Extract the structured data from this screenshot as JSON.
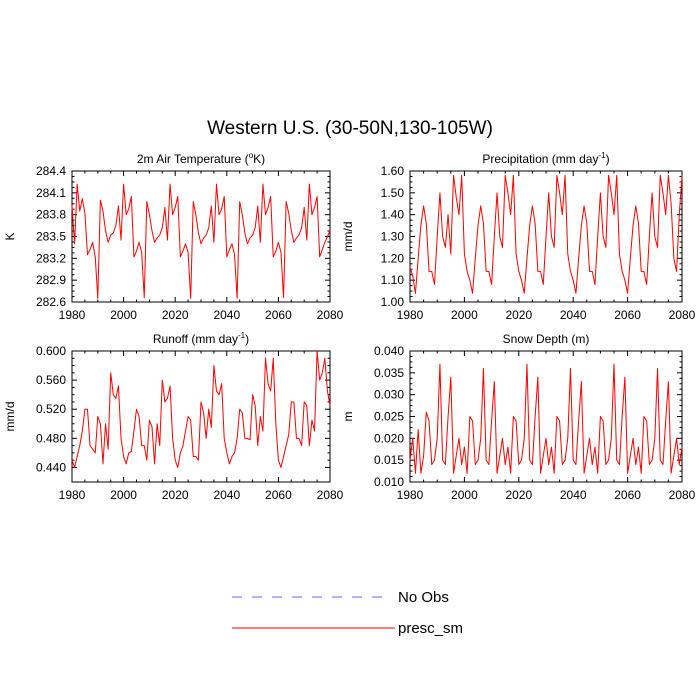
{
  "figure_title": "Western U.S. (30-50N,130-105W)",
  "colors": {
    "model_line": "#ff0000",
    "obs_line": "#6666ff",
    "axes": "#000000"
  },
  "legend": [
    {
      "label": "No Obs",
      "style": "dashed",
      "color": "#6666ff"
    },
    {
      "label": "presc_sm",
      "style": "solid",
      "color": "#ff0000"
    }
  ],
  "chart_data": [
    {
      "type": "line",
      "title_main": "2m Air Temperature (",
      "title_sup": "o",
      "title_end": "K)",
      "ylabel": "K",
      "xlim": [
        1980,
        2080
      ],
      "ylim": [
        282.6,
        284.4
      ],
      "xticks": [
        "1980",
        "2000",
        "2020",
        "2040",
        "2060",
        "2080"
      ],
      "yticks": [
        "282.6",
        "282.9",
        "283.2",
        "283.5",
        "283.8",
        "284.1",
        "284.4"
      ],
      "series": [
        {
          "name": "presc_sm",
          "x_start": 1980,
          "values": [
            283.92,
            283.4,
            284.22,
            283.85,
            284.02,
            283.82,
            283.25,
            283.32,
            283.42,
            283.22,
            282.65,
            284.0,
            283.85,
            283.58,
            283.42,
            283.52,
            283.55,
            283.65,
            283.92,
            283.45,
            284.22,
            283.8,
            283.88,
            284.05,
            283.22,
            283.3,
            283.42,
            283.28,
            282.66,
            283.98,
            283.8,
            283.58,
            283.42,
            283.48,
            283.52,
            283.62,
            283.9,
            283.45,
            284.22,
            283.8,
            283.9,
            284.05,
            283.22,
            283.3,
            283.4,
            283.28,
            282.65,
            283.98,
            283.8,
            283.55,
            283.4,
            283.48,
            283.52,
            283.62,
            283.92,
            283.42,
            284.22,
            283.8,
            283.88,
            284.05,
            283.22,
            283.32,
            283.4,
            283.25,
            282.65,
            283.98,
            283.8,
            283.55,
            283.4,
            283.48,
            283.52,
            283.62,
            283.92,
            283.42,
            284.22,
            283.8,
            283.9,
            284.05,
            283.22,
            283.3,
            283.42,
            283.28,
            282.66,
            283.98,
            283.82,
            283.58,
            283.42,
            283.48,
            283.52,
            283.62,
            283.9,
            283.45,
            284.22,
            283.8,
            283.9,
            284.05,
            283.22,
            283.32,
            283.42,
            283.5,
            283.58
          ]
        }
      ]
    },
    {
      "type": "line",
      "title_main": "Precipitation (mm day",
      "title_sup": "-1",
      "title_end": ")",
      "ylabel": "mm/d",
      "xlim": [
        1980,
        2080
      ],
      "ylim": [
        1.0,
        1.6
      ],
      "xticks": [
        "1980",
        "2000",
        "2020",
        "2040",
        "2060",
        "2080"
      ],
      "yticks": [
        "1.00",
        "1.10",
        "1.20",
        "1.30",
        "1.40",
        "1.50",
        "1.60"
      ],
      "series": [
        {
          "name": "presc_sm",
          "x_start": 1980,
          "values": [
            1.16,
            1.12,
            1.04,
            1.2,
            1.35,
            1.44,
            1.36,
            1.14,
            1.14,
            1.08,
            1.3,
            1.5,
            1.3,
            1.25,
            1.4,
            1.22,
            1.58,
            1.48,
            1.4,
            1.58,
            1.22,
            1.14,
            1.1,
            1.04,
            1.2,
            1.35,
            1.44,
            1.36,
            1.14,
            1.14,
            1.08,
            1.3,
            1.5,
            1.3,
            1.25,
            1.58,
            1.5,
            1.4,
            1.58,
            1.22,
            1.14,
            1.1,
            1.04,
            1.2,
            1.35,
            1.44,
            1.36,
            1.14,
            1.14,
            1.08,
            1.3,
            1.5,
            1.3,
            1.25,
            1.58,
            1.5,
            1.4,
            1.58,
            1.22,
            1.14,
            1.1,
            1.04,
            1.2,
            1.35,
            1.44,
            1.36,
            1.14,
            1.14,
            1.08,
            1.3,
            1.5,
            1.3,
            1.25,
            1.58,
            1.5,
            1.4,
            1.58,
            1.22,
            1.14,
            1.1,
            1.04,
            1.2,
            1.35,
            1.44,
            1.36,
            1.14,
            1.14,
            1.08,
            1.3,
            1.5,
            1.3,
            1.25,
            1.58,
            1.5,
            1.4,
            1.58,
            1.45,
            1.2,
            1.14,
            1.4,
            1.58
          ]
        }
      ]
    },
    {
      "type": "line",
      "title_main": "Runoff (mm day",
      "title_sup": "-1",
      "title_end": ")",
      "ylabel": "mm/d",
      "xlim": [
        1980,
        2080
      ],
      "ylim": [
        0.42,
        0.6
      ],
      "xticks": [
        "1980",
        "2000",
        "2020",
        "2040",
        "2060",
        "2080"
      ],
      "yticks": [
        "0.440",
        "0.480",
        "0.520",
        "0.560",
        "0.600"
      ],
      "series": [
        {
          "name": "presc_sm",
          "x_start": 1980,
          "values": [
            0.45,
            0.44,
            0.455,
            0.47,
            0.49,
            0.52,
            0.52,
            0.47,
            0.465,
            0.46,
            0.51,
            0.5,
            0.445,
            0.5,
            0.465,
            0.57,
            0.54,
            0.535,
            0.552,
            0.48,
            0.455,
            0.445,
            0.46,
            0.462,
            0.49,
            0.52,
            0.51,
            0.47,
            0.47,
            0.45,
            0.505,
            0.496,
            0.445,
            0.5,
            0.47,
            0.56,
            0.53,
            0.535,
            0.552,
            0.48,
            0.45,
            0.44,
            0.46,
            0.47,
            0.49,
            0.51,
            0.505,
            0.455,
            0.455,
            0.45,
            0.53,
            0.515,
            0.48,
            0.52,
            0.495,
            0.58,
            0.545,
            0.54,
            0.555,
            0.48,
            0.46,
            0.445,
            0.455,
            0.46,
            0.48,
            0.52,
            0.515,
            0.48,
            0.48,
            0.478,
            0.54,
            0.525,
            0.47,
            0.51,
            0.49,
            0.59,
            0.555,
            0.545,
            0.59,
            0.5,
            0.45,
            0.44,
            0.455,
            0.47,
            0.485,
            0.53,
            0.53,
            0.48,
            0.48,
            0.47,
            0.53,
            0.525,
            0.47,
            0.505,
            0.49,
            0.6,
            0.56,
            0.57,
            0.59,
            0.545,
            0.525
          ]
        }
      ]
    },
    {
      "type": "line",
      "title_main": "Snow Depth (m)",
      "title_sup": "",
      "title_end": "",
      "ylabel": "m",
      "xlim": [
        1980,
        2080
      ],
      "ylim": [
        0.01,
        0.04
      ],
      "xticks": [
        "1980",
        "2000",
        "2020",
        "2040",
        "2060",
        "2080"
      ],
      "yticks": [
        "0.010",
        "0.015",
        "0.020",
        "0.025",
        "0.030",
        "0.035",
        "0.040"
      ],
      "series": [
        {
          "name": "presc_sm",
          "x_start": 1980,
          "values": [
            0.015,
            0.02,
            0.012,
            0.022,
            0.012,
            0.016,
            0.026,
            0.024,
            0.014,
            0.015,
            0.02,
            0.037,
            0.015,
            0.014,
            0.025,
            0.034,
            0.012,
            0.016,
            0.02,
            0.014,
            0.018,
            0.012,
            0.025,
            0.024,
            0.014,
            0.015,
            0.02,
            0.036,
            0.015,
            0.014,
            0.024,
            0.033,
            0.012,
            0.016,
            0.02,
            0.014,
            0.018,
            0.012,
            0.025,
            0.024,
            0.014,
            0.015,
            0.02,
            0.037,
            0.015,
            0.014,
            0.025,
            0.034,
            0.012,
            0.016,
            0.02,
            0.014,
            0.018,
            0.012,
            0.025,
            0.024,
            0.014,
            0.015,
            0.02,
            0.036,
            0.015,
            0.014,
            0.024,
            0.033,
            0.012,
            0.016,
            0.02,
            0.014,
            0.018,
            0.012,
            0.025,
            0.024,
            0.014,
            0.015,
            0.02,
            0.037,
            0.015,
            0.014,
            0.025,
            0.034,
            0.012,
            0.016,
            0.02,
            0.014,
            0.018,
            0.012,
            0.025,
            0.024,
            0.014,
            0.015,
            0.02,
            0.036,
            0.015,
            0.014,
            0.024,
            0.033,
            0.012,
            0.016,
            0.02,
            0.014,
            0.018
          ]
        }
      ]
    }
  ]
}
